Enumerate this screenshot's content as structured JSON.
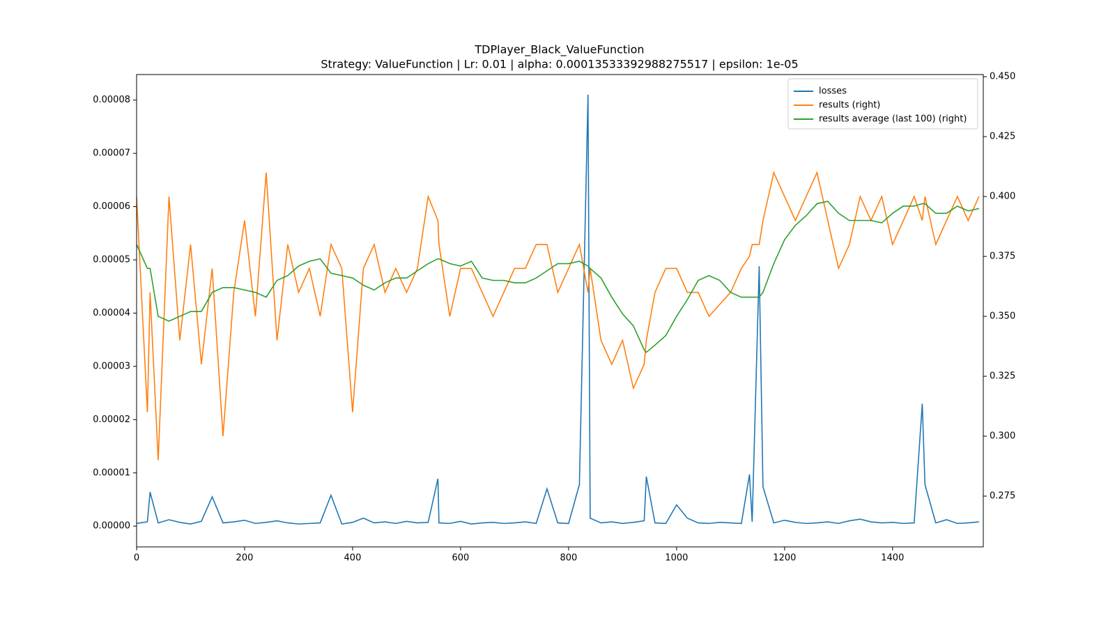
{
  "chart_data": {
    "type": "line",
    "title": "TDPlayer_Black_ValueFunction",
    "subtitle": "Strategy: ValueFunction | Lr: 0.01 | alpha: 0.00013533392988275517 | epsilon: 1e-05",
    "legend": "upper right",
    "x": [
      0,
      20,
      25,
      40,
      60,
      80,
      100,
      120,
      140,
      160,
      180,
      200,
      220,
      240,
      260,
      280,
      300,
      320,
      340,
      360,
      380,
      400,
      420,
      440,
      460,
      480,
      500,
      520,
      540,
      558,
      560,
      580,
      600,
      620,
      640,
      660,
      680,
      700,
      720,
      740,
      760,
      780,
      800,
      820,
      836,
      840,
      860,
      880,
      900,
      920,
      940,
      944,
      960,
      980,
      1000,
      1020,
      1040,
      1060,
      1080,
      1100,
      1120,
      1135,
      1140,
      1153,
      1160,
      1180,
      1200,
      1220,
      1240,
      1260,
      1280,
      1300,
      1320,
      1340,
      1360,
      1380,
      1400,
      1420,
      1440,
      1455,
      1460,
      1480,
      1500,
      1520,
      1540,
      1560
    ],
    "xlim": [
      0,
      1568
    ],
    "xticks": [
      0,
      200,
      400,
      600,
      800,
      1000,
      1200,
      1400
    ],
    "ylim": [
      -3.9e-06,
      8.48e-05
    ],
    "yticks": [
      {
        "value": 0,
        "label": "0.00000"
      },
      {
        "value": 1e-05,
        "label": "0.00001"
      },
      {
        "value": 2e-05,
        "label": "0.00002"
      },
      {
        "value": 3e-05,
        "label": "0.00003"
      },
      {
        "value": 4e-05,
        "label": "0.00004"
      },
      {
        "value": 5e-05,
        "label": "0.00005"
      },
      {
        "value": 6e-05,
        "label": "0.00006"
      },
      {
        "value": 7e-05,
        "label": "0.00007"
      },
      {
        "value": 8e-05,
        "label": "0.00008"
      }
    ],
    "y2lim": [
      0.2538,
      0.4509
    ],
    "y2ticks": [
      0.275,
      {
        "value": 0.3,
        "label": "0.300"
      },
      0.325,
      {
        "value": 0.35,
        "label": "0.350"
      },
      0.375,
      {
        "value": 0.4,
        "label": "0.400"
      },
      0.425,
      {
        "value": 0.45,
        "label": "0.450"
      }
    ],
    "series": [
      {
        "name": "losses",
        "color": "#1f77b4",
        "axis": "y",
        "values": [
          5e-07,
          8e-07,
          6.4e-06,
          6e-07,
          1.2e-06,
          7e-07,
          4e-07,
          9e-07,
          5.5e-06,
          6e-07,
          8e-07,
          1.1e-06,
          5e-07,
          7e-07,
          1e-06,
          6e-07,
          4e-07,
          5e-07,
          6e-07,
          5.8e-06,
          4e-07,
          7e-07,
          1.5e-06,
          6e-07,
          8e-07,
          5e-07,
          9e-07,
          6e-07,
          7e-07,
          8.9e-06,
          6e-07,
          5e-07,
          9e-07,
          4e-07,
          6e-07,
          7e-07,
          5e-07,
          6e-07,
          8e-07,
          5e-07,
          7e-06,
          6e-07,
          5e-07,
          7.8e-06,
          8.1e-05,
          1.5e-06,
          6e-07,
          8e-07,
          5e-07,
          7e-07,
          1e-06,
          9.3e-06,
          6e-07,
          5e-07,
          4e-06,
          1.5e-06,
          6e-07,
          5e-07,
          7e-07,
          6e-07,
          5e-07,
          9.7e-06,
          8e-07,
          4.88e-05,
          7.4e-06,
          6e-07,
          1.1e-06,
          7e-07,
          5e-07,
          6e-07,
          8e-07,
          5e-07,
          1e-06,
          1.3e-06,
          8e-07,
          6e-07,
          7e-07,
          5e-07,
          6e-07,
          2.3e-05,
          7.8e-06,
          6e-07,
          1.2e-06,
          5e-07,
          6e-07,
          8e-07
        ]
      },
      {
        "name": "results (right)",
        "color": "#ff7f0e",
        "axis": "y2",
        "values": [
          0.4,
          0.31,
          0.36,
          0.29,
          0.4,
          0.34,
          0.38,
          0.33,
          0.37,
          0.3,
          0.36,
          0.39,
          0.35,
          0.41,
          0.34,
          0.38,
          0.36,
          0.37,
          0.35,
          0.38,
          0.37,
          0.31,
          0.37,
          0.38,
          0.36,
          0.37,
          0.36,
          0.37,
          0.4,
          0.39,
          0.38,
          0.35,
          0.37,
          0.37,
          0.36,
          0.35,
          0.36,
          0.37,
          0.37,
          0.38,
          0.38,
          0.36,
          0.37,
          0.38,
          0.36,
          0.37,
          0.34,
          0.33,
          0.34,
          0.32,
          0.33,
          0.34,
          0.36,
          0.37,
          0.37,
          0.36,
          0.36,
          0.35,
          0.355,
          0.36,
          0.37,
          0.375,
          0.38,
          0.38,
          0.39,
          0.41,
          0.4,
          0.39,
          0.4,
          0.41,
          0.39,
          0.37,
          0.38,
          0.4,
          0.39,
          0.4,
          0.38,
          0.39,
          0.4,
          0.39,
          0.4,
          0.38,
          0.39,
          0.4,
          0.39,
          0.4
        ]
      },
      {
        "name": "results average (last 100) (right)",
        "color": "#2ca02c",
        "axis": "y2",
        "values": [
          0.38,
          0.37,
          0.37,
          0.35,
          0.348,
          0.35,
          0.352,
          0.352,
          0.36,
          0.362,
          0.362,
          0.361,
          0.36,
          0.358,
          0.365,
          0.367,
          0.371,
          0.373,
          0.374,
          0.368,
          0.367,
          0.366,
          0.363,
          0.361,
          0.364,
          0.366,
          0.366,
          0.369,
          0.372,
          0.374,
          0.374,
          0.372,
          0.371,
          0.373,
          0.366,
          0.365,
          0.365,
          0.364,
          0.364,
          0.366,
          0.369,
          0.372,
          0.372,
          0.373,
          0.371,
          0.37,
          0.366,
          0.358,
          0.351,
          0.346,
          0.336,
          0.335,
          0.338,
          0.342,
          0.35,
          0.357,
          0.365,
          0.367,
          0.365,
          0.36,
          0.358,
          0.358,
          0.358,
          0.358,
          0.36,
          0.372,
          0.382,
          0.388,
          0.392,
          0.397,
          0.398,
          0.393,
          0.39,
          0.39,
          0.39,
          0.389,
          0.393,
          0.396,
          0.396,
          0.397,
          0.397,
          0.393,
          0.393,
          0.396,
          0.394,
          0.395
        ]
      }
    ]
  }
}
